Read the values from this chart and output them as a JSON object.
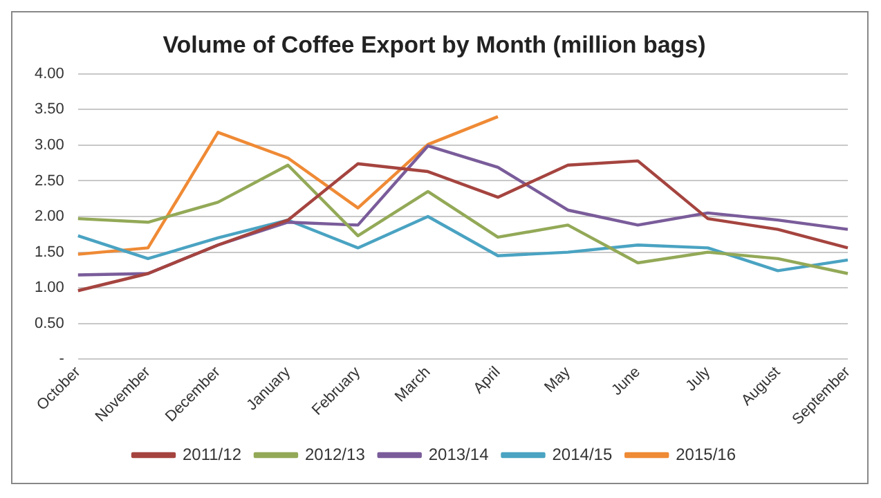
{
  "chart_data": {
    "type": "line",
    "title": "Volume of Coffee Export by Month (million bags)",
    "categories": [
      "October",
      "November",
      "December",
      "January",
      "February",
      "March",
      "April",
      "May",
      "June",
      "July",
      "August",
      "September"
    ],
    "series": [
      {
        "name": "2011/12",
        "color": "#a5443f",
        "values": [
          0.96,
          1.2,
          1.6,
          1.95,
          2.74,
          2.63,
          2.27,
          2.72,
          2.78,
          1.97,
          1.82,
          1.56
        ]
      },
      {
        "name": "2012/13",
        "color": "#93a957",
        "values": [
          1.97,
          1.92,
          2.2,
          2.72,
          1.73,
          2.35,
          1.71,
          1.88,
          1.35,
          1.5,
          1.41,
          1.2
        ]
      },
      {
        "name": "2013/14",
        "color": "#7a5c9a",
        "values": [
          1.18,
          1.2,
          1.6,
          1.92,
          1.88,
          2.99,
          2.69,
          2.09,
          1.88,
          2.05,
          1.95,
          1.82
        ]
      },
      {
        "name": "2014/15",
        "color": "#4aa3c2",
        "values": [
          1.73,
          1.41,
          1.7,
          1.95,
          1.56,
          2.0,
          1.45,
          1.5,
          1.6,
          1.56,
          1.24,
          1.39
        ]
      },
      {
        "name": "2015/16",
        "color": "#ef8a35",
        "values": [
          1.47,
          1.56,
          3.18,
          2.82,
          2.12,
          3.01,
          3.4,
          null,
          null,
          null,
          null,
          null
        ]
      }
    ],
    "ylim": [
      0,
      4
    ],
    "yticks": [
      {
        "value": 0,
        "label": "-"
      },
      {
        "value": 0.5,
        "label": "0.50"
      },
      {
        "value": 1,
        "label": "1.00"
      },
      {
        "value": 1.5,
        "label": "1.50"
      },
      {
        "value": 2,
        "label": "2.00"
      },
      {
        "value": 2.5,
        "label": "2.50"
      },
      {
        "value": 3,
        "label": "3.00"
      },
      {
        "value": 3.5,
        "label": "3.50"
      },
      {
        "value": 4,
        "label": "4.00"
      }
    ],
    "grid": "y",
    "legend": "bottom",
    "marker": "none",
    "line_style": "solid"
  }
}
